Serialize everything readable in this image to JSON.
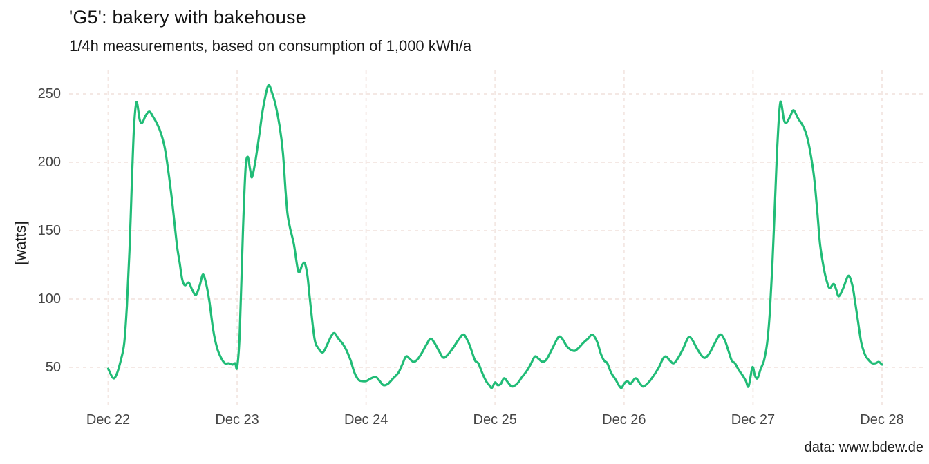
{
  "title": "'G5': bakery with bakehouse",
  "subtitle": "1/4h measurements, based on consumption of 1,000 kWh/a",
  "caption": "data: www.bdew.de",
  "y_axis": {
    "label": "[watts]",
    "ticks": [
      50,
      100,
      150,
      200,
      250
    ]
  },
  "x_axis": {
    "tick_labels": [
      "Dec 22",
      "Dec 23",
      "Dec 24",
      "Dec 25",
      "Dec 26",
      "Dec 27",
      "Dec 28"
    ]
  },
  "style": {
    "line_color": "#21bc77",
    "grid_color": "#f4e8e4",
    "tick_text_color": "#454545",
    "title_color": "#131313",
    "background": "#ffffff"
  },
  "chart_data": {
    "type": "line",
    "title": "'G5': bakery with bakehouse",
    "subtitle": "1/4h measurements, based on consumption of 1,000 kWh/a",
    "caption": "data: www.bdew.de",
    "xlabel": "",
    "ylabel": "[watts]",
    "x_tick_labels": [
      "Dec 22",
      "Dec 23",
      "Dec 24",
      "Dec 25",
      "Dec 26",
      "Dec 27",
      "Dec 28"
    ],
    "y_ticks": [
      50,
      100,
      150,
      200,
      250
    ],
    "xlim_days": [
      -0.3,
      6.35
    ],
    "ylim": [
      27,
      262
    ],
    "grid": "dashed major gridlines both axes, no axis lines, legend none",
    "x_unit": "days since Dec 22 00:00 (quarter-hour load profile)",
    "series": [
      {
        "name": "G5 bakery load",
        "color": "#21bc77",
        "points": [
          [
            0.0,
            49
          ],
          [
            0.04,
            42
          ],
          [
            0.07,
            46
          ],
          [
            0.1,
            56
          ],
          [
            0.125,
            68
          ],
          [
            0.145,
            95
          ],
          [
            0.165,
            135
          ],
          [
            0.183,
            183
          ],
          [
            0.2,
            225
          ],
          [
            0.22,
            244
          ],
          [
            0.245,
            231
          ],
          [
            0.265,
            229
          ],
          [
            0.29,
            234
          ],
          [
            0.32,
            237
          ],
          [
            0.35,
            233
          ],
          [
            0.38,
            228
          ],
          [
            0.41,
            221
          ],
          [
            0.44,
            210
          ],
          [
            0.47,
            191
          ],
          [
            0.495,
            172
          ],
          [
            0.515,
            155
          ],
          [
            0.535,
            138
          ],
          [
            0.555,
            126
          ],
          [
            0.575,
            114
          ],
          [
            0.595,
            110
          ],
          [
            0.625,
            112
          ],
          [
            0.65,
            107
          ],
          [
            0.68,
            103
          ],
          [
            0.71,
            110
          ],
          [
            0.735,
            118
          ],
          [
            0.76,
            111
          ],
          [
            0.785,
            98
          ],
          [
            0.815,
            77
          ],
          [
            0.845,
            64
          ],
          [
            0.875,
            57
          ],
          [
            0.905,
            53
          ],
          [
            0.935,
            53
          ],
          [
            0.965,
            52
          ],
          [
            0.985,
            53
          ],
          [
            1.0,
            50
          ],
          [
            1.02,
            75
          ],
          [
            1.045,
            150
          ],
          [
            1.065,
            195
          ],
          [
            1.082,
            204
          ],
          [
            1.1,
            195
          ],
          [
            1.115,
            189
          ],
          [
            1.14,
            200
          ],
          [
            1.17,
            219
          ],
          [
            1.2,
            239
          ],
          [
            1.24,
            256
          ],
          [
            1.27,
            251
          ],
          [
            1.3,
            241
          ],
          [
            1.33,
            226
          ],
          [
            1.355,
            207
          ],
          [
            1.375,
            180
          ],
          [
            1.39,
            163
          ],
          [
            1.41,
            152
          ],
          [
            1.44,
            140
          ],
          [
            1.475,
            120
          ],
          [
            1.505,
            125
          ],
          [
            1.525,
            126
          ],
          [
            1.545,
            117
          ],
          [
            1.565,
            99
          ],
          [
            1.6,
            71
          ],
          [
            1.63,
            64
          ],
          [
            1.665,
            61
          ],
          [
            1.7,
            67
          ],
          [
            1.73,
            73
          ],
          [
            1.755,
            75
          ],
          [
            1.785,
            71
          ],
          [
            1.82,
            67
          ],
          [
            1.85,
            62
          ],
          [
            1.88,
            55
          ],
          [
            1.91,
            46
          ],
          [
            1.94,
            41
          ],
          [
            1.965,
            40
          ],
          [
            2.0,
            40
          ],
          [
            2.04,
            42
          ],
          [
            2.075,
            43
          ],
          [
            2.105,
            40
          ],
          [
            2.135,
            37
          ],
          [
            2.17,
            38
          ],
          [
            2.21,
            42
          ],
          [
            2.25,
            46
          ],
          [
            2.28,
            52
          ],
          [
            2.31,
            58
          ],
          [
            2.34,
            56
          ],
          [
            2.37,
            54
          ],
          [
            2.4,
            56
          ],
          [
            2.435,
            61
          ],
          [
            2.47,
            67
          ],
          [
            2.5,
            71
          ],
          [
            2.53,
            68
          ],
          [
            2.565,
            62
          ],
          [
            2.6,
            57
          ],
          [
            2.64,
            60
          ],
          [
            2.68,
            65
          ],
          [
            2.715,
            70
          ],
          [
            2.755,
            74
          ],
          [
            2.79,
            69
          ],
          [
            2.815,
            63
          ],
          [
            2.845,
            55
          ],
          [
            2.87,
            53
          ],
          [
            2.9,
            46
          ],
          [
            2.93,
            40
          ],
          [
            2.955,
            37
          ],
          [
            2.975,
            35
          ],
          [
            3.0,
            39
          ],
          [
            3.02,
            37
          ],
          [
            3.045,
            38
          ],
          [
            3.07,
            42
          ],
          [
            3.1,
            39
          ],
          [
            3.13,
            36
          ],
          [
            3.17,
            38
          ],
          [
            3.21,
            43
          ],
          [
            3.25,
            48
          ],
          [
            3.28,
            53
          ],
          [
            3.31,
            58
          ],
          [
            3.34,
            56
          ],
          [
            3.37,
            54
          ],
          [
            3.4,
            56
          ],
          [
            3.44,
            63
          ],
          [
            3.49,
            72
          ],
          [
            3.52,
            71
          ],
          [
            3.56,
            65
          ],
          [
            3.61,
            62
          ],
          [
            3.645,
            64
          ],
          [
            3.685,
            68
          ],
          [
            3.72,
            71
          ],
          [
            3.755,
            74
          ],
          [
            3.79,
            69
          ],
          [
            3.82,
            60
          ],
          [
            3.845,
            55
          ],
          [
            3.87,
            53
          ],
          [
            3.9,
            46
          ],
          [
            3.935,
            41
          ],
          [
            3.975,
            35
          ],
          [
            4.0,
            38
          ],
          [
            4.025,
            40
          ],
          [
            4.05,
            38
          ],
          [
            4.09,
            42
          ],
          [
            4.125,
            38
          ],
          [
            4.15,
            36
          ],
          [
            4.19,
            39
          ],
          [
            4.23,
            44
          ],
          [
            4.27,
            50
          ],
          [
            4.3,
            56
          ],
          [
            4.325,
            58
          ],
          [
            4.355,
            55
          ],
          [
            4.385,
            53
          ],
          [
            4.42,
            57
          ],
          [
            4.46,
            64
          ],
          [
            4.5,
            72
          ],
          [
            4.53,
            70
          ],
          [
            4.57,
            63
          ],
          [
            4.62,
            57
          ],
          [
            4.66,
            60
          ],
          [
            4.7,
            67
          ],
          [
            4.745,
            74
          ],
          [
            4.78,
            70
          ],
          [
            4.81,
            62
          ],
          [
            4.835,
            55
          ],
          [
            4.86,
            53
          ],
          [
            4.89,
            48
          ],
          [
            4.92,
            44
          ],
          [
            4.945,
            40
          ],
          [
            4.965,
            36
          ],
          [
            4.99,
            48
          ],
          [
            5.0,
            50
          ],
          [
            5.015,
            44
          ],
          [
            5.035,
            42
          ],
          [
            5.06,
            49
          ],
          [
            5.085,
            55
          ],
          [
            5.11,
            68
          ],
          [
            5.13,
            90
          ],
          [
            5.15,
            125
          ],
          [
            5.17,
            170
          ],
          [
            5.19,
            215
          ],
          [
            5.212,
            244
          ],
          [
            5.24,
            231
          ],
          [
            5.26,
            229
          ],
          [
            5.29,
            234
          ],
          [
            5.315,
            238
          ],
          [
            5.35,
            232
          ],
          [
            5.385,
            227
          ],
          [
            5.415,
            220
          ],
          [
            5.445,
            207
          ],
          [
            5.475,
            188
          ],
          [
            5.5,
            162
          ],
          [
            5.52,
            140
          ],
          [
            5.55,
            122
          ],
          [
            5.575,
            112
          ],
          [
            5.595,
            108
          ],
          [
            5.625,
            111
          ],
          [
            5.645,
            107
          ],
          [
            5.665,
            102
          ],
          [
            5.7,
            108
          ],
          [
            5.74,
            117
          ],
          [
            5.77,
            110
          ],
          [
            5.79,
            99
          ],
          [
            5.815,
            83
          ],
          [
            5.84,
            68
          ],
          [
            5.87,
            59
          ],
          [
            5.9,
            55
          ],
          [
            5.925,
            53
          ],
          [
            5.95,
            53
          ],
          [
            5.975,
            54
          ],
          [
            6.0,
            52
          ]
        ]
      }
    ]
  }
}
